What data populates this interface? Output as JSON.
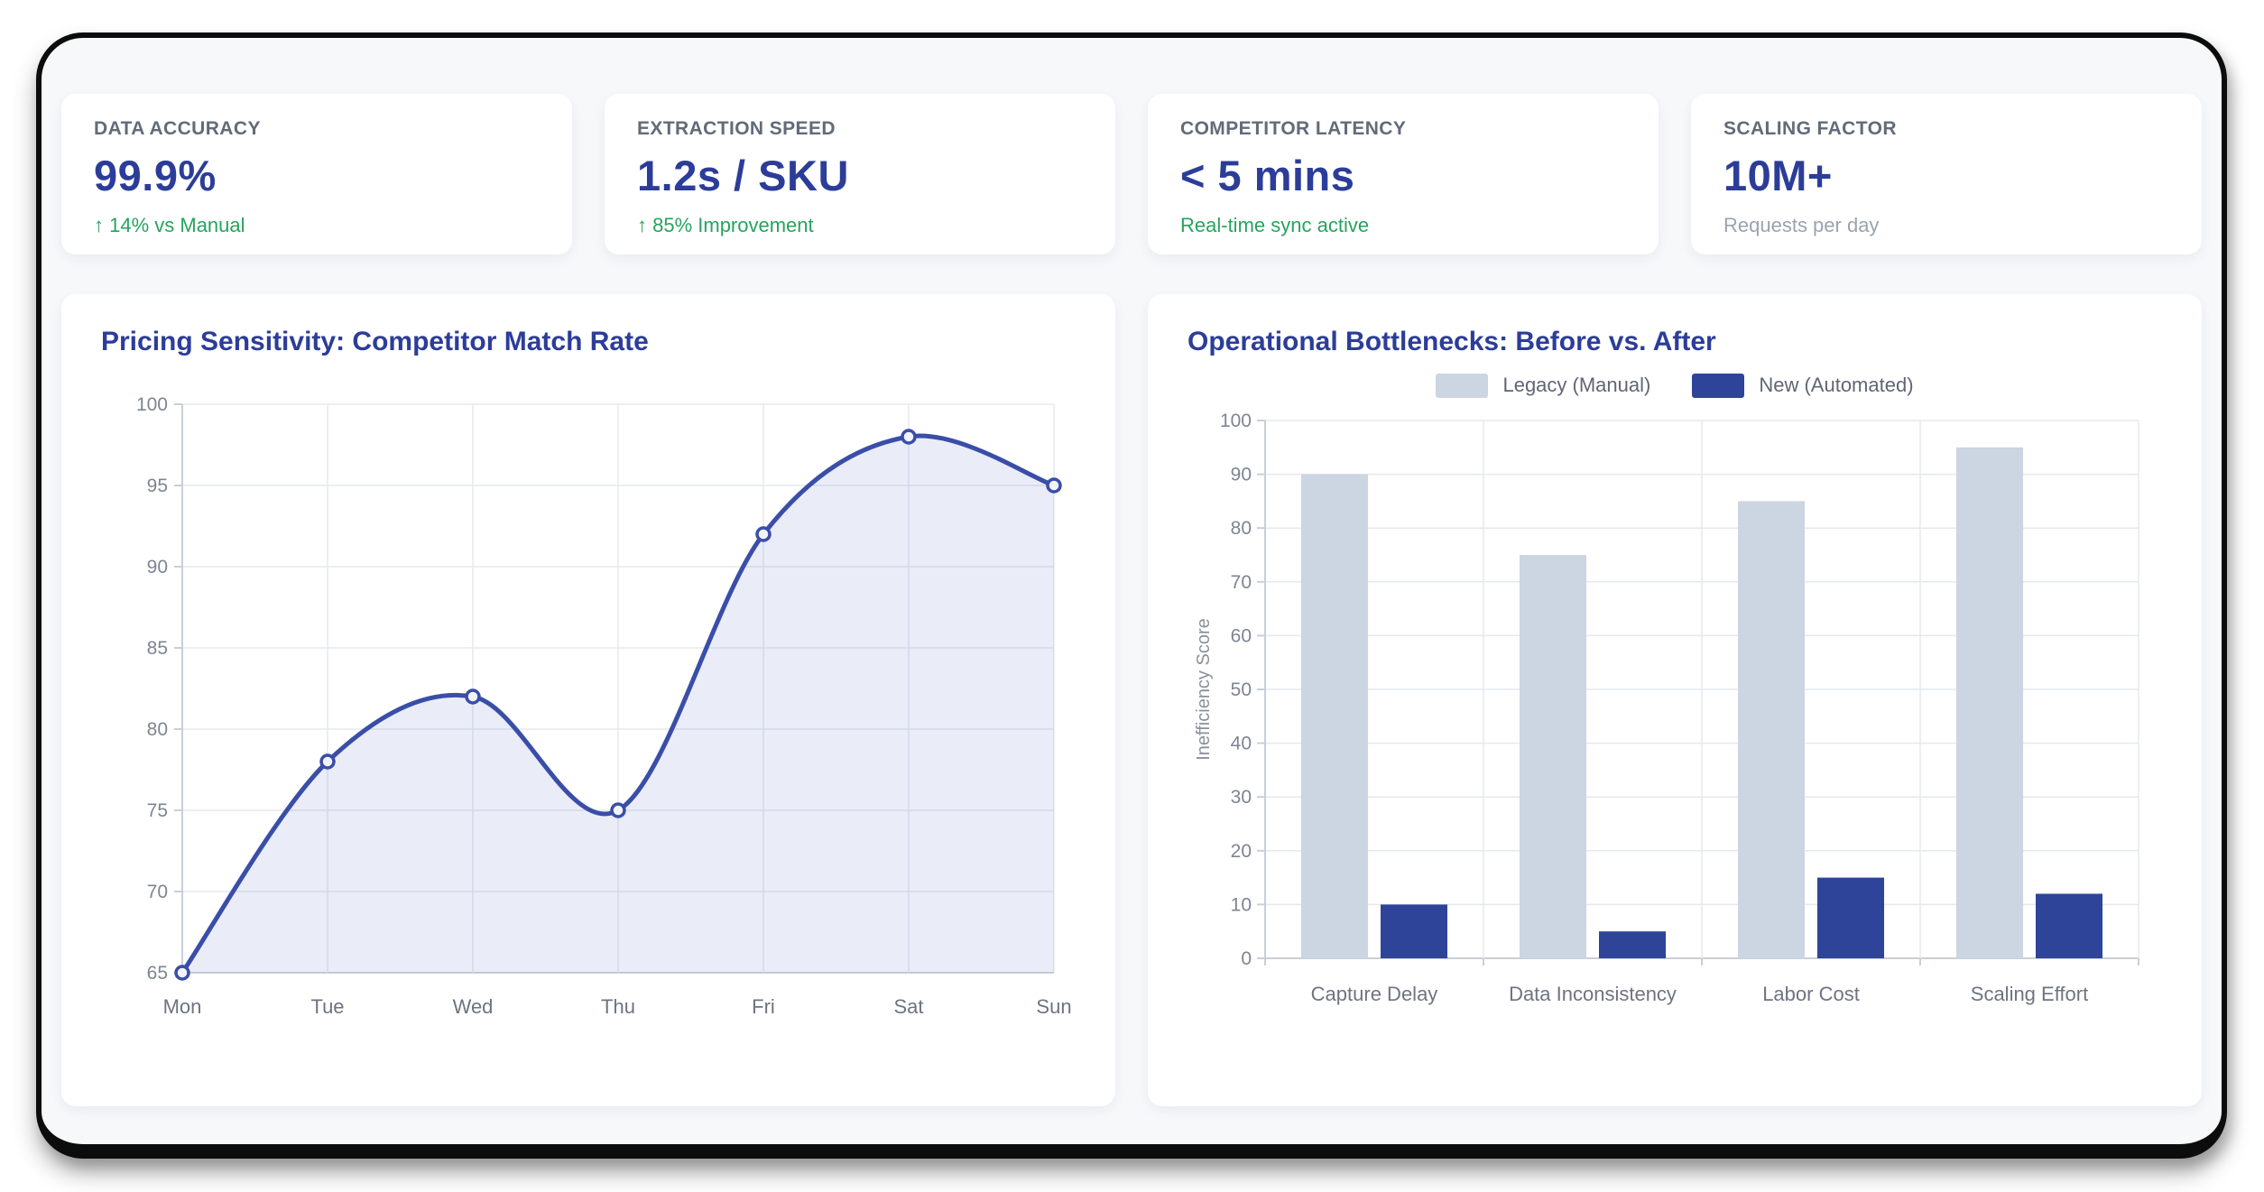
{
  "colors": {
    "accent_blue": "#2c3d99",
    "positive_green": "#27a35e",
    "muted_gray": "#9aa3b0",
    "label_gray": "#626b79",
    "line_stroke": "#3a4ea8",
    "line_fill": "rgba(103,126,196,0.14)",
    "marker_fill": "#f2f4fb",
    "bar_legacy": "#ccd5e2",
    "bar_new": "#2d4499",
    "grid": "#e5e8ee",
    "axis": "#c9cfd9",
    "tick_text": "#7d8591",
    "category_text": "#6d7480",
    "y_axis_title_color": "#8a909b"
  },
  "kpi_cards": [
    {
      "label": "DATA ACCURACY",
      "value": "99.9%",
      "sub": "↑ 14% vs Manual",
      "sub_color": "#27a35e"
    },
    {
      "label": "EXTRACTION SPEED",
      "value": "1.2s / SKU",
      "sub": "↑ 85% Improvement",
      "sub_color": "#27a35e"
    },
    {
      "label": "COMPETITOR LATENCY",
      "value": "< 5 mins",
      "sub": "Real-time sync active",
      "sub_color": "#27a35e"
    },
    {
      "label": "SCALING FACTOR",
      "value": "10M+",
      "sub": "Requests per day",
      "sub_color": "#9aa3b0"
    }
  ],
  "chart_data": [
    {
      "type": "line",
      "title": "Pricing Sensitivity: Competitor Match Rate",
      "x": [
        "Mon",
        "Tue",
        "Wed",
        "Thu",
        "Fri",
        "Sat",
        "Sun"
      ],
      "series": [
        {
          "name": "Competitor Match Rate",
          "values": [
            65,
            78,
            82,
            75,
            92,
            98,
            95
          ]
        }
      ],
      "ylim": [
        65,
        100
      ],
      "ytick_step": 5,
      "grid": true,
      "smooth": true,
      "area": true,
      "legend_position": "none"
    },
    {
      "type": "bar",
      "title": "Operational Bottlenecks: Before vs. After",
      "categories": [
        "Capture Delay",
        "Data Inconsistency",
        "Labor Cost",
        "Scaling Effort"
      ],
      "series": [
        {
          "name": "Legacy (Manual)",
          "values": [
            90,
            75,
            85,
            95
          ],
          "color": "#ccd5e2"
        },
        {
          "name": "New (Automated)",
          "values": [
            10,
            5,
            15,
            12
          ],
          "color": "#2d4499"
        }
      ],
      "xlabel": "",
      "ylabel": "Inefficiency Score",
      "ylim": [
        0,
        100
      ],
      "ytick_step": 10,
      "grid": true,
      "legend_position": "top"
    }
  ]
}
